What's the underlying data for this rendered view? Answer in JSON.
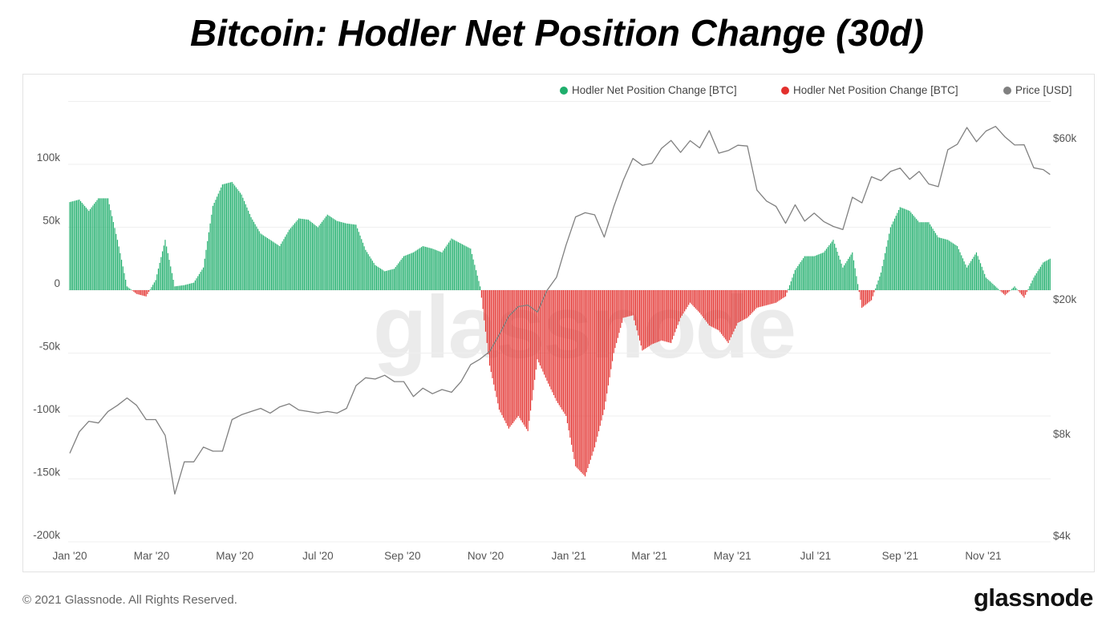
{
  "title": "Bitcoin: Hodler Net Position Change (30d)",
  "footer": "© 2021 Glassnode. All Rights Reserved.",
  "logo": "glassnode",
  "watermark": "glassnode",
  "legend": [
    {
      "label": "Hodler Net Position Change [BTC]",
      "color": "#1fae6c"
    },
    {
      "label": "Hodler Net Position Change [BTC]",
      "color": "#e3302d"
    },
    {
      "label": "Price [USD]",
      "color": "#808080"
    }
  ],
  "chart_data": {
    "type": "bar",
    "title": "Bitcoin: Hodler Net Position Change (30d)",
    "grid": true,
    "legend_placement": "top-right",
    "x_ticks": [
      "Jan '20",
      "Mar '20",
      "May '20",
      "Jul '20",
      "Sep '20",
      "Nov '20",
      "Jan '21",
      "Mar '21",
      "May '21",
      "Jul '21",
      "Sep '21",
      "Nov '21"
    ],
    "x_tick_dates": [
      "2020-01-01",
      "2020-03-01",
      "2020-05-01",
      "2020-07-01",
      "2020-09-01",
      "2020-11-01",
      "2021-01-01",
      "2021-03-01",
      "2021-05-01",
      "2021-07-01",
      "2021-09-01",
      "2021-11-01"
    ],
    "xlim": [
      "2020-01-01",
      "2021-12-20"
    ],
    "left_axis": {
      "ticks": [
        100000,
        50000,
        0,
        -50000,
        -100000,
        -150000,
        -200000
      ],
      "tick_labels": [
        "100k",
        "50k",
        "0",
        "-50k",
        "-100k",
        "-150k",
        "-200k"
      ],
      "ylim": [
        -200000,
        150000
      ]
    },
    "right_axis": {
      "scale": "log",
      "ticks": [
        60000,
        20000,
        8000,
        4000
      ],
      "tick_labels": [
        "$60k",
        "$20k",
        "$8k",
        "$4k"
      ],
      "ylim": [
        4000,
        60000
      ]
    },
    "positive_color": "#1fae6c",
    "negative_color": "#e3302d",
    "price_color": "#808080",
    "dates": [
      "2020-01-01",
      "2020-01-08",
      "2020-01-15",
      "2020-01-22",
      "2020-01-29",
      "2020-02-05",
      "2020-02-12",
      "2020-02-19",
      "2020-02-26",
      "2020-03-04",
      "2020-03-11",
      "2020-03-18",
      "2020-03-25",
      "2020-04-01",
      "2020-04-08",
      "2020-04-15",
      "2020-04-22",
      "2020-04-29",
      "2020-05-06",
      "2020-05-13",
      "2020-05-20",
      "2020-05-27",
      "2020-06-03",
      "2020-06-10",
      "2020-06-17",
      "2020-06-24",
      "2020-07-01",
      "2020-07-08",
      "2020-07-15",
      "2020-07-22",
      "2020-07-29",
      "2020-08-05",
      "2020-08-12",
      "2020-08-19",
      "2020-08-26",
      "2020-09-02",
      "2020-09-09",
      "2020-09-16",
      "2020-09-23",
      "2020-09-30",
      "2020-10-07",
      "2020-10-14",
      "2020-10-21",
      "2020-10-28",
      "2020-11-04",
      "2020-11-11",
      "2020-11-18",
      "2020-11-25",
      "2020-12-02",
      "2020-12-09",
      "2020-12-16",
      "2020-12-23",
      "2020-12-30",
      "2021-01-06",
      "2021-01-13",
      "2021-01-20",
      "2021-01-27",
      "2021-02-03",
      "2021-02-10",
      "2021-02-17",
      "2021-02-24",
      "2021-03-03",
      "2021-03-10",
      "2021-03-17",
      "2021-03-24",
      "2021-03-31",
      "2021-04-07",
      "2021-04-14",
      "2021-04-21",
      "2021-04-28",
      "2021-05-05",
      "2021-05-12",
      "2021-05-19",
      "2021-05-26",
      "2021-06-02",
      "2021-06-09",
      "2021-06-16",
      "2021-06-23",
      "2021-06-30",
      "2021-07-07",
      "2021-07-14",
      "2021-07-21",
      "2021-07-28",
      "2021-08-04",
      "2021-08-11",
      "2021-08-18",
      "2021-08-25",
      "2021-09-01",
      "2021-09-08",
      "2021-09-15",
      "2021-09-22",
      "2021-09-29",
      "2021-10-06",
      "2021-10-13",
      "2021-10-20",
      "2021-10-27",
      "2021-11-03",
      "2021-11-10",
      "2021-11-17",
      "2021-11-24",
      "2021-12-01",
      "2021-12-08",
      "2021-12-15",
      "2021-12-20"
    ],
    "series": [
      {
        "name": "Hodler Net Position Change [BTC]",
        "axis": "left",
        "values": [
          70000,
          72000,
          63000,
          73000,
          73000,
          40000,
          3000,
          -3000,
          -5000,
          8000,
          40000,
          3000,
          4000,
          6000,
          18000,
          67000,
          84000,
          86000,
          76000,
          58000,
          45000,
          40000,
          35000,
          48000,
          57000,
          56000,
          50000,
          60000,
          55000,
          53000,
          52000,
          32000,
          20000,
          15000,
          17000,
          27000,
          30000,
          35000,
          33000,
          30000,
          41000,
          37000,
          33000,
          3000,
          -60000,
          -95000,
          -110000,
          -100000,
          -112000,
          -55000,
          -72000,
          -88000,
          -100000,
          -140000,
          -148000,
          -125000,
          -95000,
          -50000,
          -22000,
          -20000,
          -48000,
          -43000,
          -40000,
          -42000,
          -22000,
          -10000,
          -18000,
          -28000,
          -32000,
          -42000,
          -26000,
          -22000,
          -14000,
          -12000,
          -10000,
          -5000,
          16000,
          27000,
          27000,
          30000,
          40000,
          18000,
          30000,
          -14000,
          -8000,
          14000,
          50000,
          66000,
          63000,
          54000,
          54000,
          42000,
          40000,
          35000,
          18000,
          30000,
          10000,
          3000,
          -4000,
          3000,
          -6000,
          10000,
          22000,
          25000
        ]
      },
      {
        "name": "Price [USD]",
        "axis": "right",
        "values": [
          7000,
          8100,
          8700,
          8600,
          9300,
          9700,
          10200,
          9700,
          8800,
          8800,
          7900,
          5300,
          6600,
          6600,
          7300,
          7100,
          7100,
          8800,
          9100,
          9300,
          9500,
          9200,
          9600,
          9800,
          9400,
          9300,
          9200,
          9300,
          9200,
          9500,
          11100,
          11700,
          11600,
          11900,
          11400,
          11400,
          10300,
          10900,
          10500,
          10800,
          10600,
          11400,
          12800,
          13300,
          14000,
          15700,
          17800,
          19000,
          19200,
          18300,
          21200,
          23200,
          28900,
          35000,
          36000,
          35500,
          30500,
          37500,
          44900,
          52100,
          49700,
          50400,
          55800,
          58900,
          54300,
          58800,
          56000,
          63000,
          54000,
          55000,
          57000,
          56700,
          42000,
          39000,
          37600,
          33500,
          38000,
          34000,
          35900,
          33900,
          32800,
          32100,
          40000,
          38500,
          46000,
          44800,
          47700,
          48800,
          45200,
          47700,
          43800,
          43000,
          55300,
          57400,
          64300,
          58400,
          62800,
          64800,
          60300,
          57100,
          57200,
          48900,
          48300,
          46700
        ]
      }
    ]
  }
}
